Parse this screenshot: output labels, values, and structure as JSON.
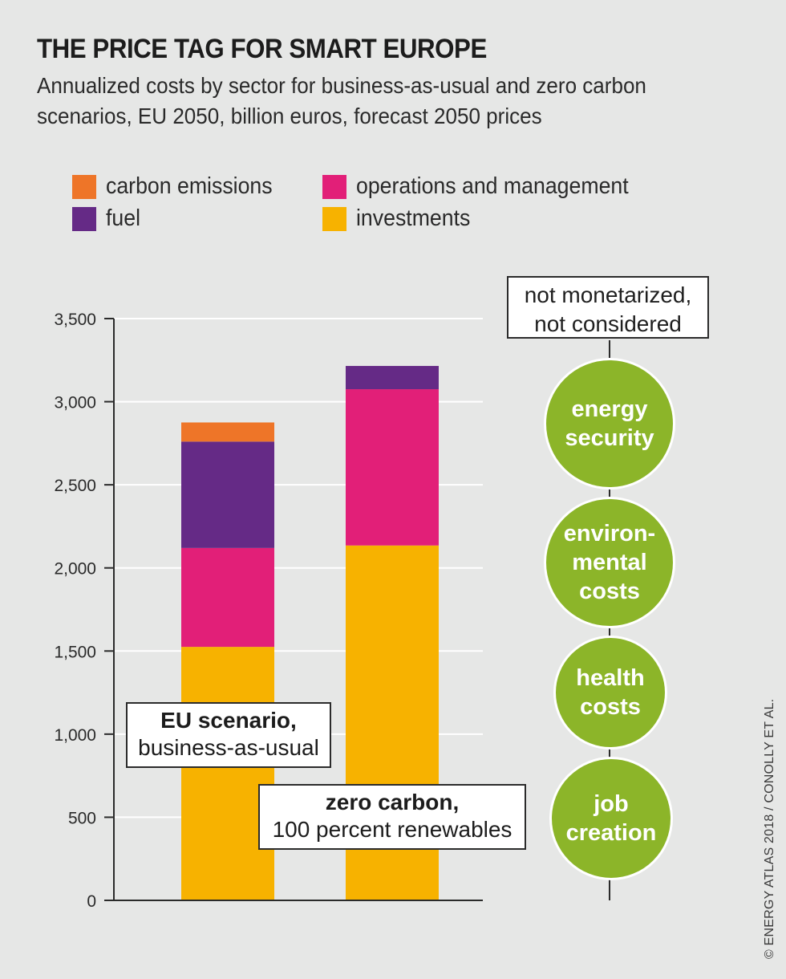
{
  "header": {
    "title": "THE PRICE TAG FOR SMART EUROPE",
    "subtitle": "Annualized costs by sector for business-as-usual and zero carbon scenarios, EU 2050, billion euros, forecast 2050 prices"
  },
  "legend": [
    {
      "label": "carbon emissions",
      "color": "#ee7528"
    },
    {
      "label": "fuel",
      "color": "#652a86"
    },
    {
      "label": "operations and management",
      "color": "#e21f78"
    },
    {
      "label": "investments",
      "color": "#f7b200"
    }
  ],
  "chart_data": {
    "type": "bar",
    "stacked": true,
    "title": "THE PRICE TAG FOR SMART EUROPE",
    "subtitle": "Annualized costs by sector for business-as-usual and zero carbon scenarios, EU 2050, billion euros, forecast 2050 prices",
    "categories": [
      "EU scenario, business-as-usual",
      "zero carbon, 100 percent renewables"
    ],
    "series": [
      {
        "name": "investments",
        "color": "#f7b200",
        "values": [
          1525,
          2135
        ]
      },
      {
        "name": "operations and management",
        "color": "#e21f78",
        "values": [
          595,
          940
        ]
      },
      {
        "name": "fuel",
        "color": "#652a86",
        "values": [
          640,
          140
        ]
      },
      {
        "name": "carbon emissions",
        "color": "#ee7528",
        "values": [
          115,
          0
        ]
      }
    ],
    "ylim": [
      0,
      3500
    ],
    "yticks": [
      0,
      500,
      1000,
      1500,
      2000,
      2500,
      3000,
      3500
    ],
    "ytick_labels": [
      "0",
      "500",
      "1,000",
      "1,500",
      "2,000",
      "2,500",
      "3,000",
      "3,500"
    ],
    "grid": true,
    "legend_position": "top"
  },
  "labels": {
    "bau_line1": "EU scenario,",
    "bau_line2": "business-as-usual",
    "zc_line1": "zero carbon,",
    "zc_line2": "100 percent renewables"
  },
  "not_monetized": {
    "line1": "not monetarized,",
    "line2": "not considered",
    "items": [
      "energy\nsecurity",
      "environ-\nmental\ncosts",
      "health\ncosts",
      "job\ncreation"
    ],
    "color": "#8cb529"
  },
  "credit": "© ENERGY ATLAS 2018 / CONOLLY ET AL."
}
